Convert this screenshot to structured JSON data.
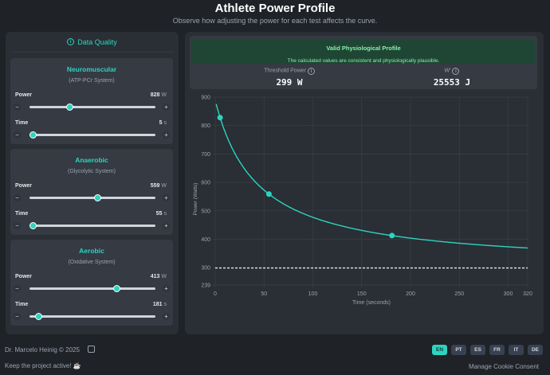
{
  "header": {
    "title": "Athlete Power Profile",
    "subtitle": "Observe how adjusting the power for each test affects the curve."
  },
  "data_quality": {
    "label": "Data Quality",
    "icon": "info-icon"
  },
  "tests": [
    {
      "name": "Neuromuscular",
      "system": "(ATP-PCr System)",
      "power_label": "Power",
      "power": "828",
      "power_unit": "W",
      "power_fraction": 0.32,
      "time_label": "Time",
      "time": "5",
      "time_unit": "s",
      "time_fraction": 0.03
    },
    {
      "name": "Anaerobic",
      "system": "(Glycolytic System)",
      "power_label": "Power",
      "power": "559",
      "power_unit": "W",
      "power_fraction": 0.54,
      "time_label": "Time",
      "time": "55",
      "time_unit": "s",
      "time_fraction": 0.03
    },
    {
      "name": "Aerobic",
      "system": "(Oxidative System)",
      "power_label": "Power",
      "power": "413",
      "power_unit": "W",
      "power_fraction": 0.69,
      "time_label": "Time",
      "time": "181",
      "time_unit": "s",
      "time_fraction": 0.07
    }
  ],
  "status": {
    "title": "Valid Physiological Profile",
    "message": "The calculated values are consistent and physiologically plausible.",
    "color": "#1f4634"
  },
  "stats": {
    "cp_label": "Threshold Power",
    "cp_value": "299 W",
    "w_label": "W'",
    "w_value": "25553 J"
  },
  "chart_data": {
    "type": "line",
    "xlabel": "Time (seconds)",
    "ylabel": "Power (Watts)",
    "xlim": [
      0,
      320
    ],
    "ylim": [
      239,
      900
    ],
    "xticks": [
      0,
      50,
      100,
      150,
      200,
      250,
      300,
      320
    ],
    "yticks": [
      239,
      300,
      400,
      500,
      600,
      700,
      800,
      900
    ],
    "points": [
      {
        "x": 5,
        "y": 828
      },
      {
        "x": 55,
        "y": 559
      },
      {
        "x": 181,
        "y": 413
      }
    ],
    "threshold": 299,
    "w_prime": 25553,
    "grid": true,
    "line_color": "#2dd4bf"
  },
  "footer": {
    "author": "Dr. Marcelo Heinig © 2025",
    "support": "Keep the project active!",
    "cookie": "Manage Cookie Consent",
    "languages": [
      "EN",
      "PT",
      "ES",
      "FR",
      "IT",
      "DE"
    ],
    "active_language": "EN"
  }
}
